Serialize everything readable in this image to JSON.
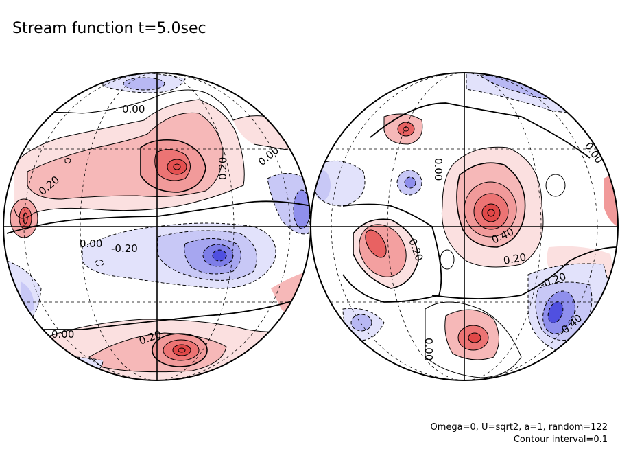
{
  "title": "Stream function t=5.0sec",
  "footer": {
    "params": "Omega=0, U=sqrt2, a=1, random=122",
    "interval": "Contour interval=0.1"
  },
  "left_labels": {
    "l1": "0.00",
    "l2": "0.20",
    "l3": "0.20",
    "l4": "0.00",
    "l5": "0.00",
    "l6": "-0.20",
    "l7": "0.00",
    "l8": "0.20"
  },
  "right_labels": {
    "r1": "0.00",
    "r2": "0.00",
    "r3": "0.40",
    "r4": "0.20",
    "r5": "0.20",
    "r6": "-0.20",
    "r7": "-0.40",
    "r8": "0.00"
  },
  "colors": {
    "positive": "#e04848",
    "negative": "#3a3ae0",
    "contour": "#000000",
    "grid": "#000000"
  }
}
